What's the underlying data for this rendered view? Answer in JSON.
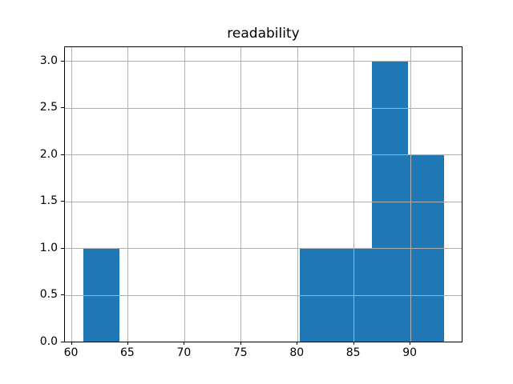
{
  "chart_data": {
    "type": "bar",
    "subtype": "histogram",
    "title": "readability",
    "xlabel": "",
    "ylabel": "",
    "bin_edges": [
      61.0,
      64.2,
      67.4,
      70.6,
      73.8,
      77.0,
      80.2,
      83.4,
      86.6,
      89.8,
      93.0
    ],
    "counts": [
      1,
      0,
      0,
      0,
      0,
      0,
      1,
      1,
      3,
      2
    ],
    "xlim": [
      59.4,
      94.6
    ],
    "ylim": [
      0,
      3.15
    ],
    "xticks": [
      60,
      65,
      70,
      75,
      80,
      85,
      90
    ],
    "xtick_labels": [
      "60",
      "65",
      "70",
      "75",
      "80",
      "85",
      "90"
    ],
    "yticks": [
      0.0,
      0.5,
      1.0,
      1.5,
      2.0,
      2.5,
      3.0
    ],
    "ytick_labels": [
      "0.0",
      "0.5",
      "1.0",
      "1.5",
      "2.0",
      "2.5",
      "3.0"
    ],
    "grid": true,
    "grid_above_bars": true,
    "legend": null,
    "colors": {
      "bar": "#1f77b4",
      "grid": "#b0b0b0",
      "axis": "#000000",
      "background": "#ffffff",
      "text": "#000000"
    }
  }
}
